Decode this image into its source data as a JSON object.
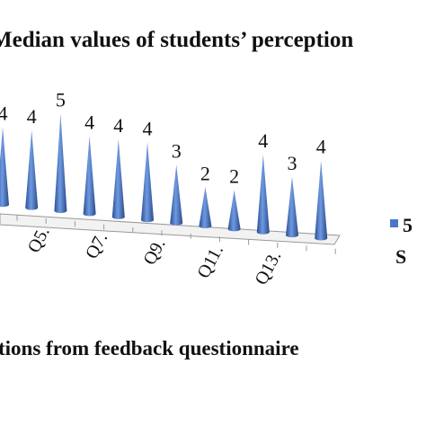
{
  "chart_data": {
    "type": "cone",
    "title": "Median values of students’ perception",
    "x_label": "tions from feedback questionnaire",
    "categories": [
      null,
      null,
      "Q5.",
      null,
      "Q7.",
      null,
      "Q9.",
      null,
      "Q11.",
      null,
      "Q13.",
      null
    ],
    "series": [
      {
        "color": "#4a78c8",
        "values": [
          4,
          4,
          5,
          4,
          4,
          4,
          3,
          2,
          2,
          4,
          3,
          4
        ]
      }
    ],
    "ylim": [
      0,
      5
    ],
    "legend": [
      "5",
      "S"
    ]
  }
}
